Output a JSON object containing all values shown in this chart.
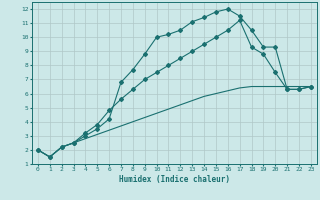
{
  "xlabel": "Humidex (Indice chaleur)",
  "bg_color": "#cce8e8",
  "grid_color": "#b0c8c8",
  "line_color": "#1a7070",
  "xlim": [
    -0.5,
    23.5
  ],
  "ylim": [
    1,
    12.5
  ],
  "xticks": [
    0,
    1,
    2,
    3,
    4,
    5,
    6,
    7,
    8,
    9,
    10,
    11,
    12,
    13,
    14,
    15,
    16,
    17,
    18,
    19,
    20,
    21,
    22,
    23
  ],
  "yticks": [
    1,
    2,
    3,
    4,
    5,
    6,
    7,
    8,
    9,
    10,
    11,
    12
  ],
  "line1_x": [
    0,
    1,
    2,
    3,
    4,
    5,
    6,
    7,
    8,
    9,
    10,
    11,
    12,
    13,
    14,
    15,
    16,
    17,
    18,
    19,
    20,
    21,
    22,
    23
  ],
  "line1_y": [
    2.0,
    1.5,
    2.2,
    2.5,
    2.8,
    3.1,
    3.4,
    3.7,
    4.0,
    4.3,
    4.6,
    4.9,
    5.2,
    5.5,
    5.8,
    6.0,
    6.2,
    6.4,
    6.5,
    6.5,
    6.5,
    6.5,
    6.5,
    6.5
  ],
  "line2_x": [
    0,
    1,
    2,
    3,
    4,
    5,
    6,
    7,
    8,
    9,
    10,
    11,
    12,
    13,
    14,
    15,
    16,
    17,
    18,
    19,
    20,
    21,
    22,
    23
  ],
  "line2_y": [
    2.0,
    1.5,
    2.2,
    2.5,
    3.0,
    3.5,
    4.2,
    6.8,
    7.7,
    8.8,
    10.0,
    10.2,
    10.5,
    11.1,
    11.4,
    11.8,
    12.0,
    11.5,
    10.5,
    9.3,
    9.3,
    6.3,
    6.3,
    6.5
  ],
  "line3_x": [
    0,
    1,
    2,
    3,
    4,
    5,
    6,
    7,
    8,
    9,
    10,
    11,
    12,
    13,
    14,
    15,
    16,
    17,
    18,
    19,
    20,
    21,
    22,
    23
  ],
  "line3_y": [
    2.0,
    1.5,
    2.2,
    2.5,
    3.2,
    3.8,
    4.8,
    5.6,
    6.3,
    7.0,
    7.5,
    8.0,
    8.5,
    9.0,
    9.5,
    10.0,
    10.5,
    11.2,
    9.3,
    8.8,
    7.5,
    6.3,
    6.3,
    6.5
  ]
}
